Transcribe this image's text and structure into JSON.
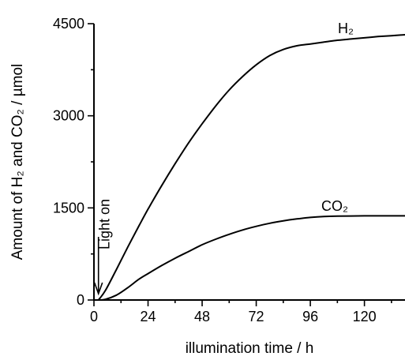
{
  "chart_data": {
    "type": "line",
    "xlabel": "illumination time / h",
    "ylabel": "Amount of H₂ and CO₂ / µmol",
    "xlim": [
      0,
      138
    ],
    "ylim": [
      0,
      4500
    ],
    "x_ticks": [
      "0",
      "24",
      "48",
      "72",
      "96",
      "120"
    ],
    "y_ticks": [
      "0",
      "1500",
      "3000",
      "4500"
    ],
    "grid": false,
    "legend": "none",
    "series": [
      {
        "name": "H₂",
        "x": [
          2,
          5,
          10,
          15,
          20,
          24,
          30,
          36,
          42,
          48,
          54,
          60,
          66,
          72,
          78,
          84,
          90,
          96,
          102,
          108,
          114,
          120,
          126,
          132,
          138
        ],
        "y": [
          0,
          150,
          500,
          860,
          1210,
          1480,
          1860,
          2220,
          2560,
          2870,
          3160,
          3420,
          3640,
          3830,
          3980,
          4080,
          4140,
          4170,
          4200,
          4230,
          4250,
          4270,
          4290,
          4305,
          4320
        ]
      },
      {
        "name": "CO₂",
        "x": [
          2,
          5,
          10,
          15,
          20,
          24,
          30,
          36,
          42,
          48,
          54,
          60,
          66,
          72,
          78,
          84,
          90,
          96,
          102,
          108,
          114,
          120,
          126,
          132,
          138
        ],
        "y": [
          0,
          10,
          80,
          200,
          340,
          430,
          560,
          680,
          790,
          900,
          990,
          1070,
          1140,
          1200,
          1250,
          1290,
          1320,
          1345,
          1360,
          1365,
          1368,
          1370,
          1370,
          1370,
          1370
        ]
      }
    ],
    "annotations": [
      {
        "text": "Light on",
        "x": 2
      }
    ]
  }
}
